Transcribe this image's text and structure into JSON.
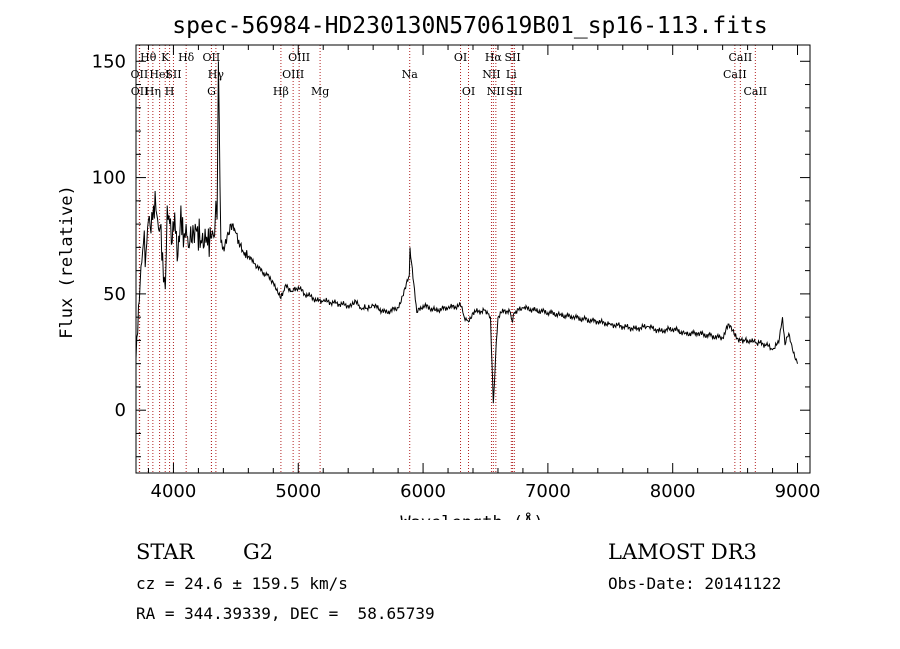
{
  "chart_data": {
    "type": "line",
    "title": "spec-56984-HD230130N570619B01_sp16-113.fits",
    "xlabel": "Wavelength (Å)",
    "ylabel": "Flux (relative)",
    "xlim": [
      3700,
      9100
    ],
    "ylim": [
      -27,
      157
    ],
    "xticks": [
      4000,
      5000,
      6000,
      7000,
      8000,
      9000
    ],
    "yticks": [
      0,
      50,
      100,
      150
    ],
    "series": [
      {
        "name": "flux",
        "x": [
          3700,
          3720,
          3740,
          3760,
          3780,
          3800,
          3820,
          3840,
          3860,
          3880,
          3900,
          3920,
          3935,
          3950,
          3970,
          3990,
          4010,
          4030,
          4060,
          4080,
          4101,
          4120,
          4150,
          4180,
          4220,
          4260,
          4300,
          4330,
          4340,
          4350,
          4360,
          4380,
          4400,
          4430,
          4460,
          4490,
          4510,
          4530,
          4560,
          4600,
          4650,
          4700,
          4750,
          4800,
          4861,
          4900,
          4950,
          5000,
          5050,
          5100,
          5150,
          5200,
          5300,
          5400,
          5460,
          5500,
          5577,
          5600,
          5700,
          5800,
          5890,
          5895,
          5950,
          6000,
          6100,
          6200,
          6300,
          6330,
          6364,
          6400,
          6500,
          6540,
          6563,
          6580,
          6600,
          6650,
          6700,
          6717,
          6731,
          6800,
          6900,
          7000,
          7100,
          7200,
          7300,
          7400,
          7500,
          7600,
          7700,
          7800,
          7900,
          8000,
          8100,
          8200,
          8300,
          8400,
          8450,
          8498,
          8542,
          8600,
          8662,
          8700,
          8750,
          8800,
          8850,
          8880,
          8900,
          8930,
          8960,
          8990,
          9000
        ],
        "values": [
          22,
          45,
          62,
          72,
          68,
          82,
          76,
          88,
          86,
          78,
          80,
          55,
          52,
          88,
          80,
          72,
          85,
          64,
          88,
          70,
          80,
          70,
          72,
          78,
          73,
          72,
          74,
          75,
          90,
          82,
          150,
          72,
          70,
          75,
          80,
          78,
          76,
          70,
          68,
          66,
          63,
          60,
          58,
          55,
          48,
          54,
          51,
          53,
          50,
          49,
          47,
          47,
          46,
          45,
          47,
          44,
          44,
          45,
          42,
          44,
          58,
          70,
          42,
          45,
          43,
          44,
          45,
          40,
          38,
          42,
          43,
          40,
          3,
          22,
          40,
          43,
          42,
          38,
          42,
          44,
          43,
          42,
          41,
          40,
          39,
          38,
          37,
          36,
          35,
          36,
          34,
          35,
          33,
          33,
          32,
          31,
          37,
          32,
          30,
          30,
          29,
          29,
          28,
          26,
          29,
          40,
          28,
          33,
          26,
          22,
          20
        ]
      }
    ],
    "line_labels": [
      {
        "wl": 3727,
        "text": "OII",
        "row": 2
      },
      {
        "wl": 3729,
        "text": "OII",
        "row": 3
      },
      {
        "wl": 3798,
        "text": "Hθ",
        "row": 1
      },
      {
        "wl": 3835,
        "text": "Hη",
        "row": 3
      },
      {
        "wl": 3889,
        "text": "HeI",
        "row": 2
      },
      {
        "wl": 3934,
        "text": "K",
        "row": 1
      },
      {
        "wl": 3969,
        "text": "H",
        "row": 3
      },
      {
        "wl": 4000,
        "text": "SII",
        "row": 2
      },
      {
        "wl": 4102,
        "text": "Hδ",
        "row": 1
      },
      {
        "wl": 4304,
        "text": "OII",
        "row": 1
      },
      {
        "wl": 4340,
        "text": "Hγ",
        "row": 2
      },
      {
        "wl": 4305,
        "text": "G",
        "row": 3
      },
      {
        "wl": 4861,
        "text": "Hβ",
        "row": 3
      },
      {
        "wl": 4959,
        "text": "OIII",
        "row": 2
      },
      {
        "wl": 5007,
        "text": "OIII",
        "row": 1
      },
      {
        "wl": 5175,
        "text": "Mg",
        "row": 3
      },
      {
        "wl": 5893,
        "text": "Na",
        "row": 2
      },
      {
        "wl": 6300,
        "text": "OI",
        "row": 1
      },
      {
        "wl": 6364,
        "text": "OI",
        "row": 3
      },
      {
        "wl": 6548,
        "text": "NII",
        "row": 2
      },
      {
        "wl": 6563,
        "text": "Hα",
        "row": 1
      },
      {
        "wl": 6583,
        "text": "NII",
        "row": 3
      },
      {
        "wl": 6707,
        "text": "Li",
        "row": 2
      },
      {
        "wl": 6717,
        "text": "SII",
        "row": 1
      },
      {
        "wl": 6731,
        "text": "SII",
        "row": 3
      },
      {
        "wl": 8498,
        "text": "CaII",
        "row": 2
      },
      {
        "wl": 8542,
        "text": "CaII",
        "row": 1
      },
      {
        "wl": 8662,
        "text": "CaII",
        "row": 3
      }
    ],
    "line_color": "#b22222",
    "grid": false
  },
  "info": {
    "object": "STAR",
    "subclass": "G2",
    "survey": "LAMOST DR3",
    "cz": "cz = 24.6 ± 159.5 km/s",
    "obs_date": "Obs-Date: 20141122",
    "coords": "RA = 344.39339, DEC =  58.65739"
  }
}
